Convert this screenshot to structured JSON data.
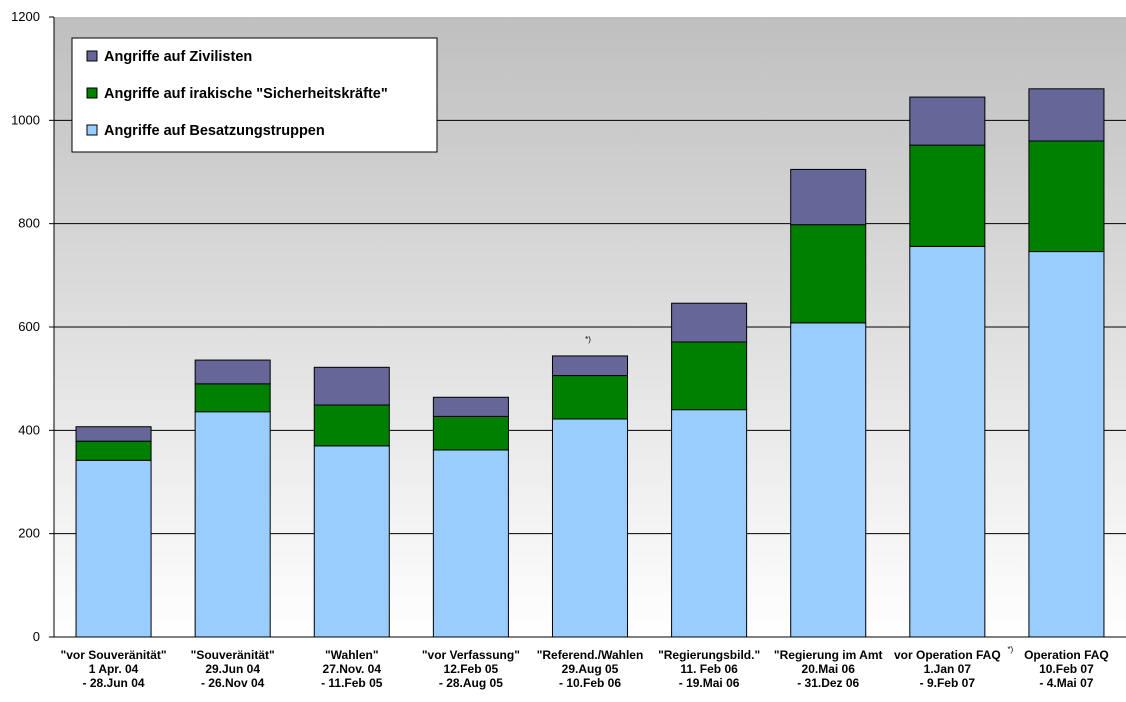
{
  "chart_data": {
    "type": "bar",
    "stacked": true,
    "ylim": [
      0,
      1200
    ],
    "yticks": [
      0,
      200,
      400,
      600,
      800,
      1000,
      1200
    ],
    "grid": true,
    "legend_placement": "top-left",
    "categories": [
      [
        "\"vor Souveränität\"",
        "1 Apr. 04",
        "- 28.Jun 04"
      ],
      [
        "\"Souveränität\"",
        "29.Jun 04",
        "- 26.Nov 04"
      ],
      [
        "\"Wahlen\"",
        "27.Nov. 04",
        "- 11.Feb 05"
      ],
      [
        "\"vor Verfassung\"",
        "12.Feb 05",
        "- 28.Aug 05"
      ],
      [
        "\"Referend./Wahlen",
        "29.Aug 05",
        "- 10.Feb 06"
      ],
      [
        "\"Regierungsbild.\"",
        "11. Feb 06",
        "- 19.Mai 06"
      ],
      [
        "\"Regierung im Amt",
        "20.Mai 06",
        "- 31.Dez 06"
      ],
      [
        "vor Operation FAQ",
        "1.Jan 07",
        "- 9.Feb 07"
      ],
      [
        "Operation FAQ",
        "10.Feb 07",
        "- 4.Mai 07"
      ]
    ],
    "footnote_marks": {
      "4": "*)",
      "7": "*)",
      "8": "*)"
    },
    "series": [
      {
        "name": "Angriffe auf Besatzungstruppen",
        "color": "#99ccff",
        "values": [
          342,
          436,
          370,
          362,
          422,
          440,
          608,
          756,
          746
        ]
      },
      {
        "name": "Angriffe auf irakische \"Sicherheitskräfte\"",
        "color": "#008000",
        "values": [
          37,
          54,
          79,
          65,
          84,
          131,
          190,
          196,
          214
        ]
      },
      {
        "name": "Angriffe auf Zivilisten",
        "color": "#666699",
        "values": [
          28,
          46,
          73,
          37,
          38,
          75,
          107,
          93,
          101
        ]
      }
    ],
    "legend_order": [
      2,
      1,
      0
    ],
    "colors": {
      "plot_top": "#bfbfbf",
      "plot_bottom": "#ffffff",
      "grid": "#000000"
    }
  }
}
